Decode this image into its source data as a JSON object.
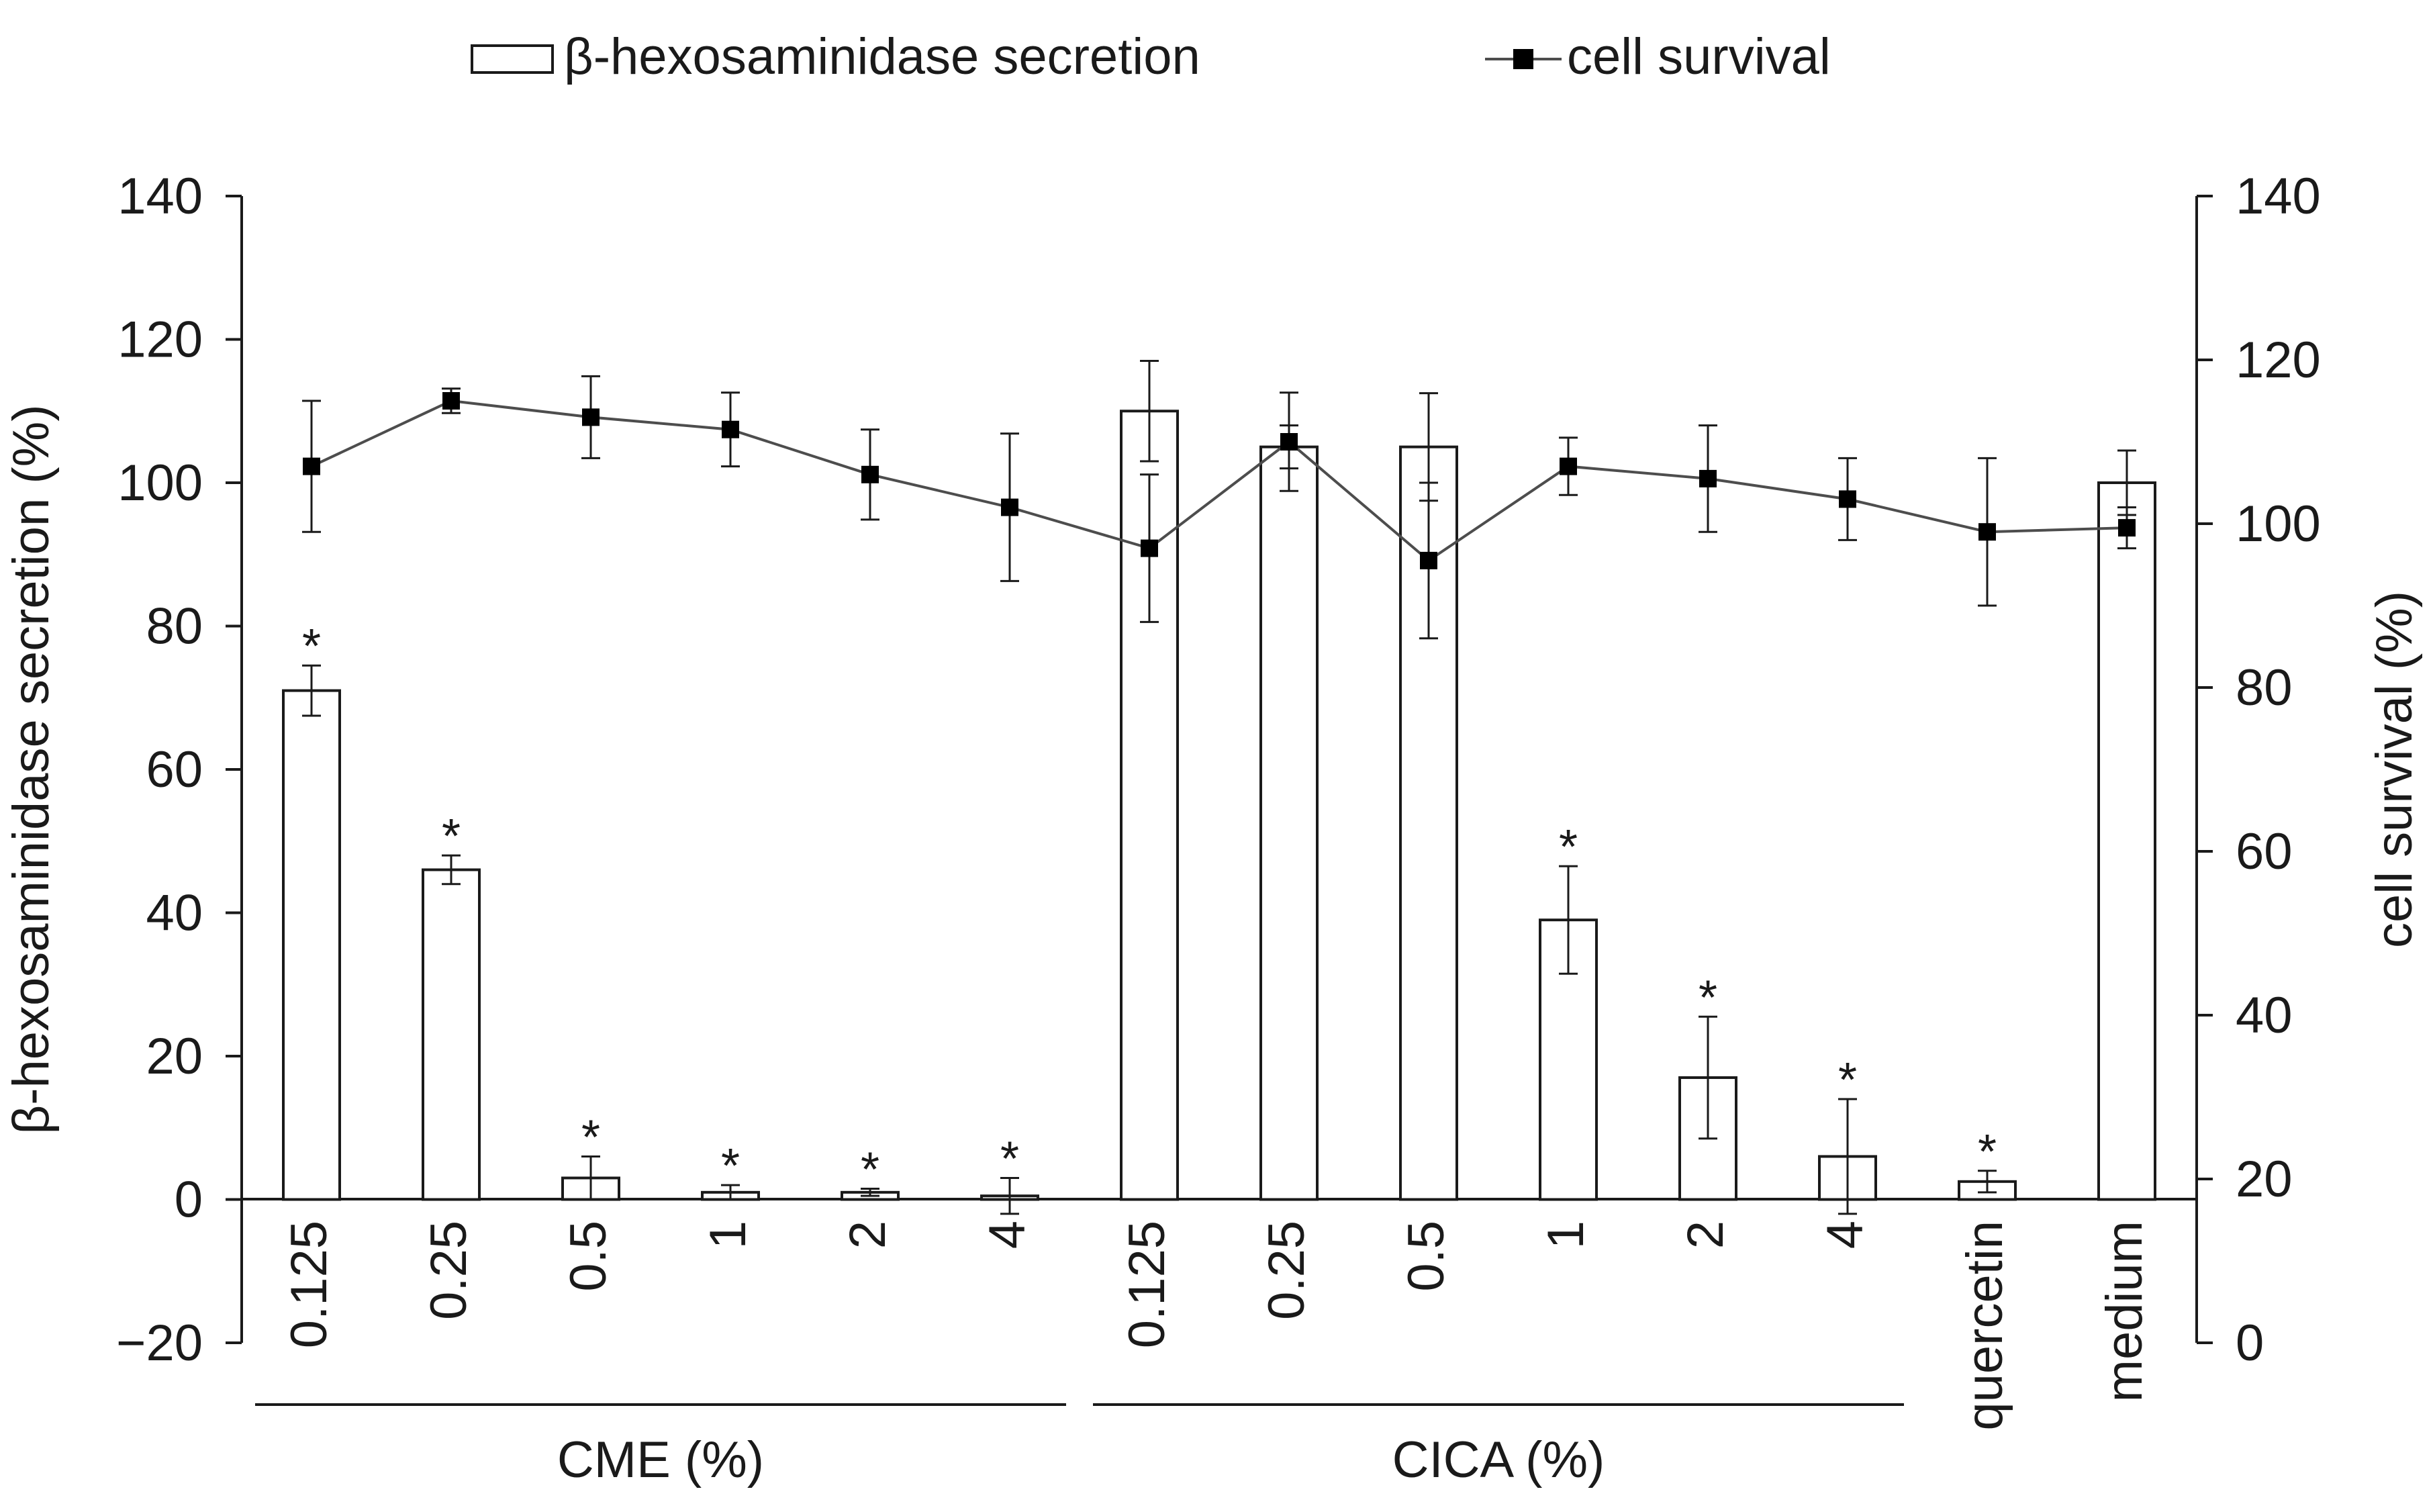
{
  "chart_data": {
    "type": "bar+line",
    "categories": [
      "0.125",
      "0.25",
      "0.5",
      "1",
      "2",
      "4",
      "0.125",
      "0.25",
      "0.5",
      "1",
      "2",
      "4",
      "quercetin",
      "medium"
    ],
    "groups": [
      {
        "label": "CME (%)",
        "range": [
          0,
          5
        ]
      },
      {
        "label": "CICA (%)",
        "range": [
          6,
          11
        ]
      }
    ],
    "legend": {
      "bar_label": "β-hexosaminidase secretion",
      "line_label": "cell survival",
      "placement": "top"
    },
    "series": [
      {
        "name": "β-hexosaminidase secretion",
        "kind": "bar",
        "axis": "left",
        "values": [
          71,
          46,
          3,
          1,
          1,
          0.5,
          110,
          105,
          105,
          39,
          17,
          6,
          2.5,
          100
        ],
        "errors": [
          3.5,
          2,
          3,
          1,
          0.5,
          2.5,
          7,
          3,
          7.5,
          7.5,
          8.5,
          8,
          1.5,
          4.5
        ],
        "significant": [
          true,
          true,
          true,
          true,
          true,
          true,
          false,
          false,
          false,
          true,
          true,
          true,
          true,
          false
        ]
      },
      {
        "name": "cell survival",
        "kind": "line",
        "axis": "right",
        "values": [
          107,
          115,
          113,
          111.5,
          106,
          102,
          97,
          110,
          95.5,
          107,
          105.5,
          103,
          99,
          99.5
        ],
        "errors": [
          8,
          1.5,
          5,
          4.5,
          5.5,
          9,
          9,
          6,
          9.5,
          3.5,
          6.5,
          5,
          9,
          2.5
        ]
      }
    ],
    "significance_marker": "*",
    "y_left": {
      "label": "β-hexosaminidase secretion (%)",
      "lim": [
        -20,
        140
      ],
      "ticks": [
        -20,
        0,
        20,
        40,
        60,
        80,
        100,
        120,
        140
      ],
      "tick_labels": [
        "−20",
        "0",
        "20",
        "40",
        "60",
        "80",
        "100",
        "120",
        "140"
      ]
    },
    "y_right": {
      "label": "cell survival (%)",
      "lim": [
        0,
        140
      ],
      "ticks": [
        0,
        20,
        40,
        60,
        80,
        100,
        120,
        140
      ],
      "tick_labels": [
        "0",
        "20",
        "40",
        "60",
        "80",
        "100",
        "120",
        "140"
      ]
    },
    "grid": false,
    "colors": {
      "bar_fill": "#ffffff",
      "bar_stroke": "#1a1a1a",
      "line": "#4d4d4d",
      "marker": "#000000",
      "text": "#1a1a1a"
    }
  }
}
